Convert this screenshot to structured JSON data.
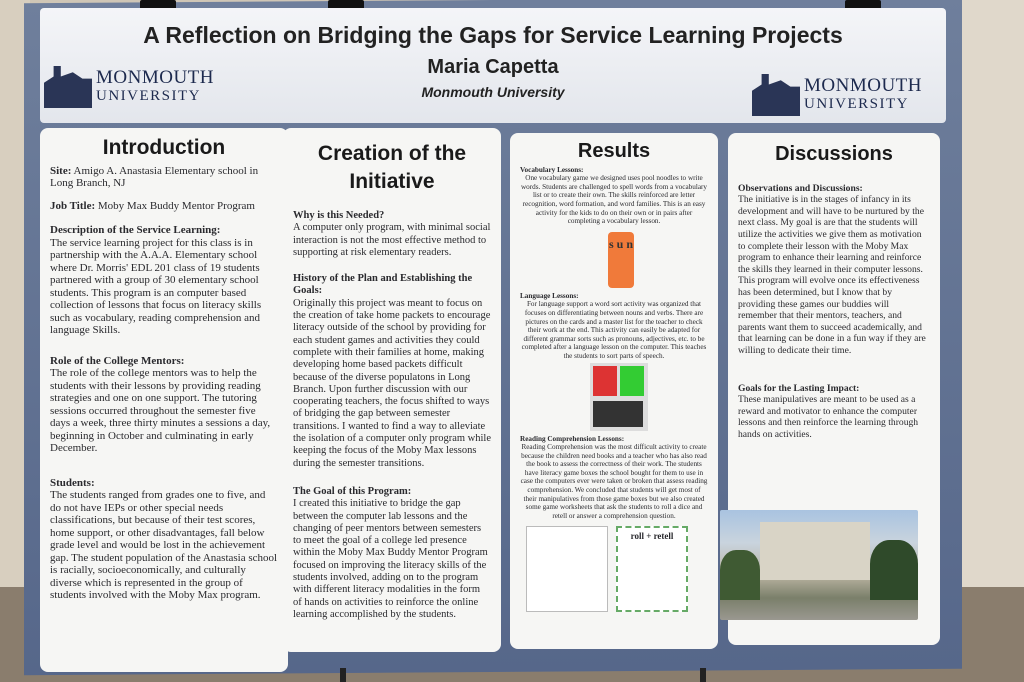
{
  "header": {
    "title": "A Reflection on Bridging the Gaps for Service Learning Projects",
    "author": "Maria Capetta",
    "affiliation": "Monmouth University",
    "logo_text": "MONMOUTH UNIVERSITY"
  },
  "introduction": {
    "heading": "Introduction",
    "site_label": "Site:",
    "site": "Amigo A. Anastasia Elementary school in Long Branch, NJ",
    "job_label": "Job Title:",
    "job": "Moby Max Buddy Mentor Program",
    "desc_heading": "Description of the Service Learning:",
    "desc": "The service learning project for this class is in partnership with the A.A.A. Elementary school where Dr. Morris' EDL 201 class of 19 students partnered with a group of 30 elementary school students. This program is an computer based collection of lessons that focus on literacy skills such as vocabulary, reading comprehension and language Skills.",
    "role_heading": "Role of the College Mentors:",
    "role": "The role of the college mentors was to help the students with their lessons by providing reading strategies and one on one support. The tutoring sessions occurred throughout the semester five days a week, three thirty minutes a sessions a day, beginning in October and culminating in early December.",
    "students_heading": "Students:",
    "students": "The students ranged from grades one to five, and do not have IEPs or other special needs classifications, but because of their test scores, home support, or other disadvantages, fall below grade level and would be lost in the achievement gap. The student population of the Anastasia school is racially, socioeconomically, and culturally diverse which is represented in the group of students involved with the Moby Max program."
  },
  "creation": {
    "heading": "Creation of the Initiative",
    "why_heading": "Why is this Needed?",
    "why": "A computer only program, with minimal social interaction is not the most effective method to supporting at risk elementary readers.",
    "history_heading": "History of the Plan and Establishing the Goals:",
    "history": "Originally this project was meant to focus on the creation of take home packets to encourage literacy outside of the school by providing for each student games and activities they could complete with their families at home, making developing home based packets difficult because of the diverse populatons in Long Branch. Upon further discussion with our cooperating teachers, the focus shifted to ways of bridging the gap between semester transitions. I wanted to find a way to alleviate the isolation of a computer only program while keeping the focus of the Moby Max lessons during the semester transitions.",
    "goal_heading": "The Goal of this Program:",
    "goal": "I created this initiative to bridge the gap between the computer lab lessons and the changing of peer mentors between semesters to meet the goal of a college led presence within the Moby Max Buddy Mentor Program focused on improving the literacy skills of the students involved, adding on to the program with different literacy modalities in the form of hands on activities to reinforce the online learning accomplished by the students."
  },
  "results": {
    "heading": "Results",
    "vocab_heading": "Vocabulary Lessons:",
    "vocab": "One vocabulary game we designed uses pool noodles to write words. Students are challenged to spell words from a vocabulary list or to create their own. The skills reinforced are letter recognition, word formation, and word families. This is an easy activity for the kids to do on their own or in pairs after completing a vocabulary lesson.",
    "lang_heading": "Language Lessons:",
    "lang": "For language support a word sort activity was organized that focuses on differentiating between nouns and verbs. There are pictures on the cards and a master list for the teacher to check their work at the end. This activity can easily be adapted for different grammar sorts such as pronouns, adjectives, etc. to be completed after a language lesson on the computer. This teaches the students to sort parts of speech.",
    "read_heading": "Reading Comprehension Lessons:",
    "read": "Reading Comprehension was the most difficult activity to create because the children need books and a teacher who has also read the book to assess the correctness of their work. The students have literacy game boxes the school bought for them to use in case the computers ever were taken or broken that assess reading comprehension. We concluded that students will get most of their manipulatives from those game boxes but we also created some game worksheets that ask the students to roll a dice and retell or answer a comprehension question.",
    "noodle_letters": "s u n",
    "worksheet_title": "roll + retell"
  },
  "discussions": {
    "heading": "Discussions",
    "obs_heading": "Observations and Discussions:",
    "obs": "The initiative is in the stages of infancy in its development and will have to be nurtured by the next class. My goal is are that the students will utilize the activities we give them as motivation to complete their lesson with the Moby Max program to enhance their learning and reinforce the skills they learned in their computer lessons. This program will evolve once its effectiveness has been determined, but I know that by providing these games our buddies will remember that their mentors, teachers, and parents want them to succeed academically, and that learning can be done in a fun way if they are willing to dedicate their time.",
    "goals_heading": "Goals for the Lasting Impact:",
    "goals": "These manipulatives are meant to be used as a reward and motivator to enhance the computer lessons and then reinforce the learning through hands on activities."
  }
}
